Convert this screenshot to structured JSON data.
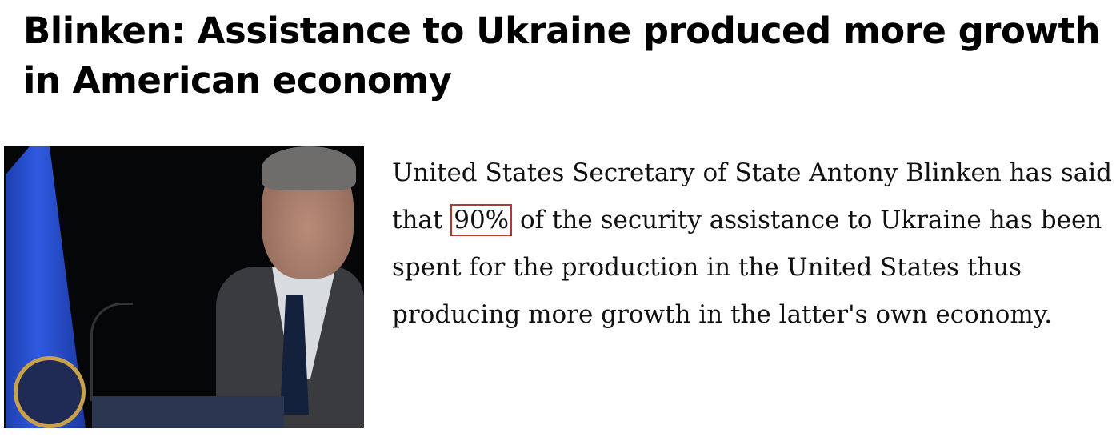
{
  "article": {
    "title": "Blinken: Assistance to Ukraine produced more growth in American economy",
    "image_alt": "Antony Blinken speaking at podium",
    "body_lines": {
      "l1": "United States Secretary of State Antony Blinken has said",
      "l2_pre": "that ",
      "l2_highlight": "90%",
      "l2_post": " of the security assistance to Ukraine has been",
      "l3": "spent for the production in the United States thus",
      "l4": "producing more growth in the latter's own economy."
    },
    "highlight_color": "#b03a2e"
  }
}
